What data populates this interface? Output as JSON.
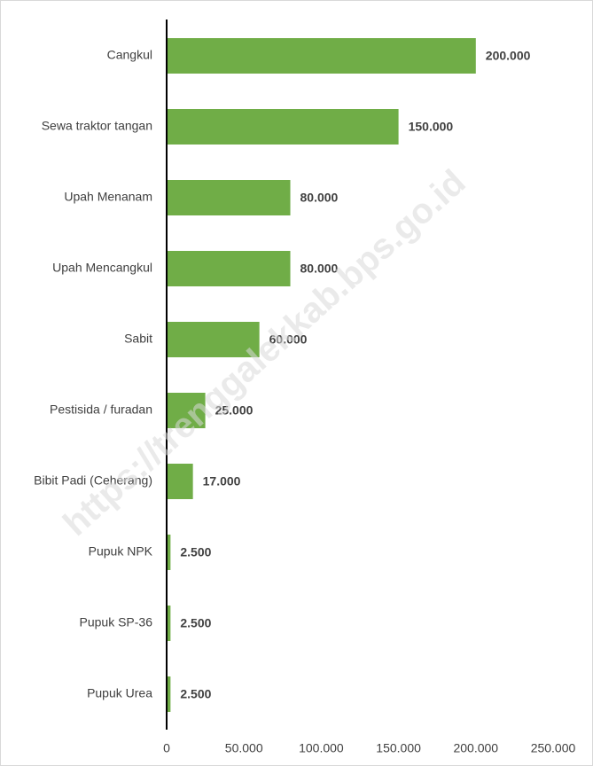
{
  "chart_data": {
    "type": "bar",
    "orientation": "horizontal",
    "categories": [
      "Cangkul",
      "Sewa traktor tangan",
      "Upah Menanam",
      "Upah Mencangkul",
      "Sabit",
      "Pestisida / furadan",
      "Bibit Padi (Ceherang)",
      "Pupuk NPK",
      "Pupuk SP-36",
      "Pupuk Urea"
    ],
    "values": [
      200000,
      150000,
      80000,
      80000,
      60000,
      25000,
      17000,
      2500,
      2500,
      2500
    ],
    "value_labels": [
      "200.000",
      "150.000",
      "80.000",
      "80.000",
      "60.000",
      "25.000",
      "17.000",
      "2.500",
      "2.500",
      "2.500"
    ],
    "color": "#70ad47",
    "xlim": [
      0,
      250000
    ],
    "xticks": [
      0,
      {
        "value": 50000,
        "label": "50.000"
      },
      {
        "value": 100000,
        "label": "100.000"
      },
      {
        "value": 150000,
        "label": "150.000"
      },
      {
        "value": 200000,
        "label": "200.000"
      },
      {
        "value": 250000,
        "label": "250.000"
      }
    ],
    "grid": false,
    "watermark": "https://trenggalekkab.bps.go.id"
  }
}
